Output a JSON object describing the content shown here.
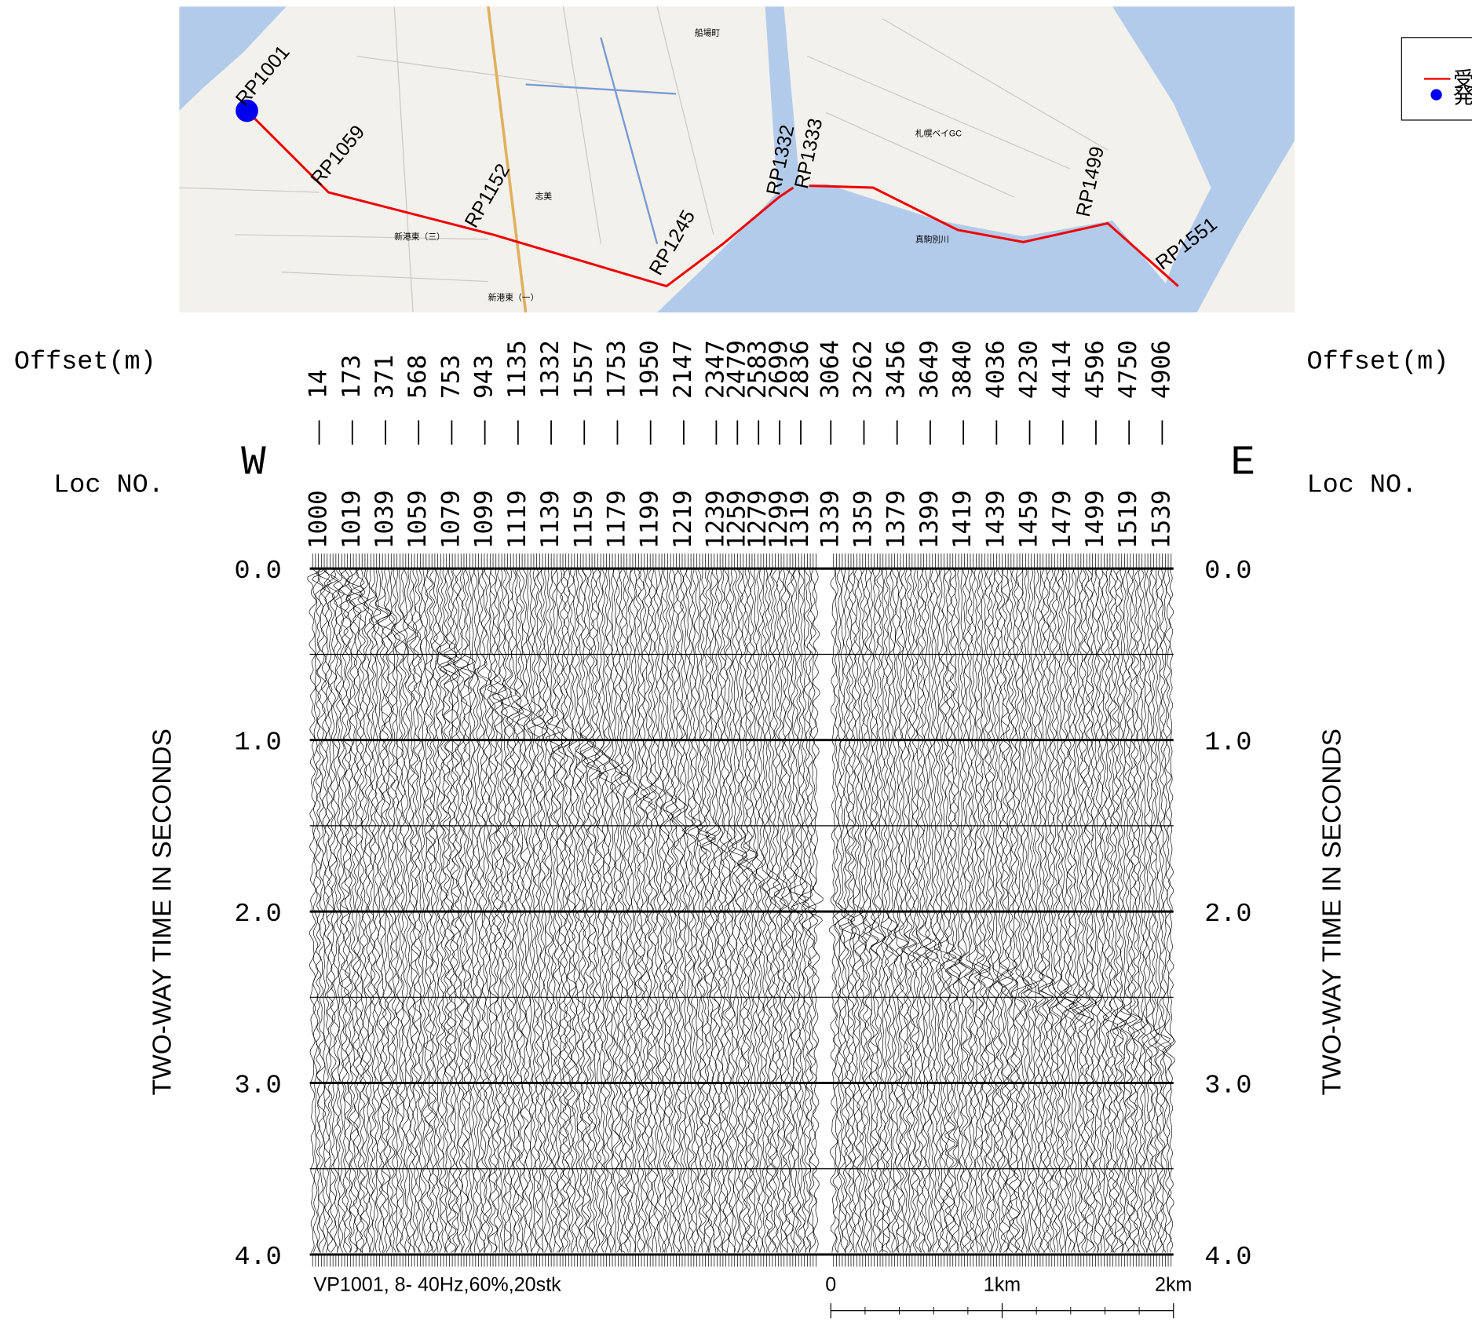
{
  "map": {
    "labels": [
      "RP1001",
      "RP1059",
      "RP1152",
      "RP1245",
      "RP1332",
      "RP1333",
      "RP1499",
      "RP1551"
    ],
    "place_names": [
      "船場町",
      "札幌ベイGC",
      "志美",
      "新港東（三）",
      "新港東（一）",
      "真駒別川"
    ],
    "legend": [
      "受",
      "発"
    ]
  },
  "seismic": {
    "offset_title": "Offset(m)",
    "loc_title": "Loc NO.",
    "west": "W",
    "east": "E",
    "offsets": [
      14,
      173,
      371,
      568,
      753,
      943,
      1135,
      1332,
      1557,
      1753,
      1950,
      2147,
      2347,
      2479,
      2583,
      2699,
      2836,
      3064,
      3262,
      3456,
      3649,
      3840,
      4036,
      4230,
      4414,
      4596,
      4750,
      4906
    ],
    "locs": [
      1000,
      1019,
      1039,
      1059,
      1079,
      1099,
      1119,
      1139,
      1159,
      1179,
      1199,
      1219,
      1239,
      1259,
      1279,
      1299,
      1319,
      1339,
      1359,
      1379,
      1399,
      1419,
      1439,
      1459,
      1479,
      1499,
      1519,
      1539
    ],
    "time_axis_label": "TWO-WAY TIME IN SECONDS",
    "time_lim": [
      0,
      4
    ],
    "time_ticks": [
      {
        "value": 0,
        "label": "0.0"
      },
      {
        "value": 1,
        "label": "1.0"
      },
      {
        "value": 2,
        "label": "2.0"
      },
      {
        "value": 3,
        "label": "3.0"
      },
      {
        "value": 4,
        "label": "4.0"
      }
    ],
    "minor_time_ticks": [
      0.5,
      1.5,
      2.5,
      3.5
    ],
    "caption": "VP1001, 8- 40Hz,60%,20stk",
    "scale_bar": [
      {
        "value": 0,
        "label": "0"
      },
      {
        "value": 1,
        "label": "1km"
      },
      {
        "value": 2,
        "label": "2km"
      }
    ]
  }
}
